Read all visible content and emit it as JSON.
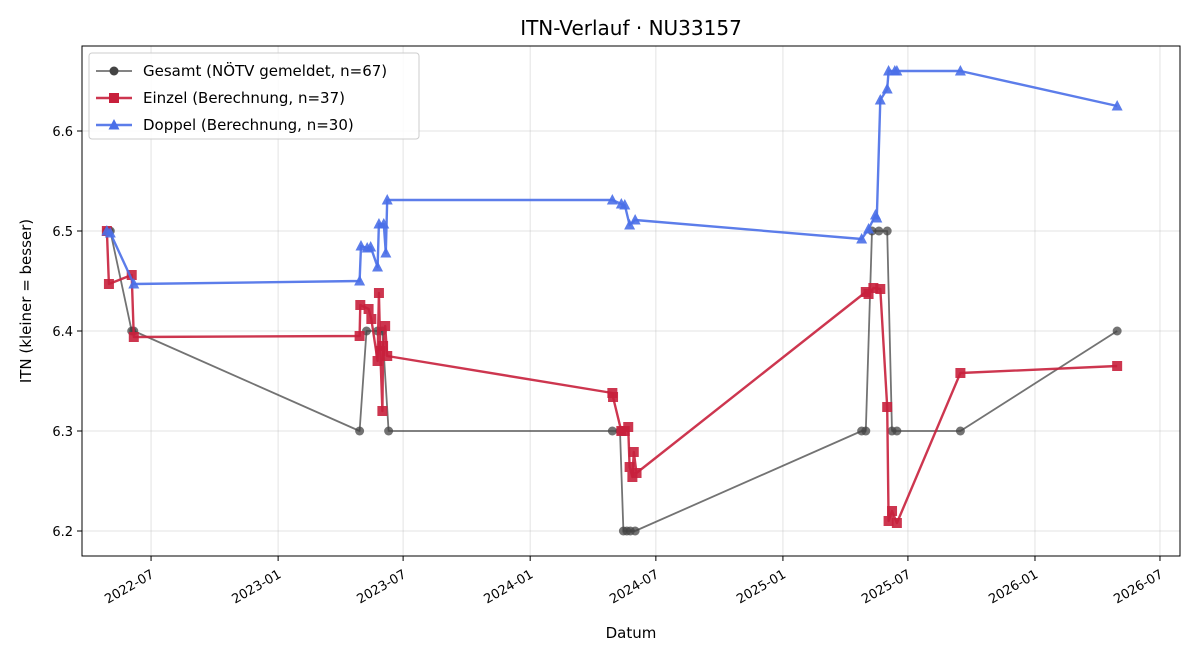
{
  "chart_data": {
    "type": "line",
    "title": "ITN-Verlauf · NU33157",
    "xlabel": "Datum",
    "ylabel": "ITN  (kleiner = besser)",
    "xlim": [
      "2022-03-23",
      "2026-07-30"
    ],
    "ylim": [
      6.175,
      6.685
    ],
    "x_ticks": [
      "2022-07",
      "2023-01",
      "2023-07",
      "2024-01",
      "2024-07",
      "2025-01",
      "2025-07",
      "2026-01",
      "2026-07"
    ],
    "y_ticks": [
      "6.2",
      "6.3",
      "6.4",
      "6.5",
      "6.6"
    ],
    "grid": true,
    "legend_position": "top-left",
    "series": [
      {
        "name": "Gesamt (NÖTV gemeldet, n=67)",
        "color": "#444444",
        "marker": "circle",
        "points": [
          [
            "2022-04-28",
            6.5
          ],
          [
            "2022-05-01",
            6.5
          ],
          [
            "2022-05-03",
            6.5
          ],
          [
            "2022-06-03",
            6.4
          ],
          [
            "2022-06-06",
            6.4
          ],
          [
            "2023-04-29",
            6.3
          ],
          [
            "2023-05-09",
            6.4
          ],
          [
            "2023-05-25",
            6.4
          ],
          [
            "2023-06-01",
            6.4
          ],
          [
            "2023-06-10",
            6.3
          ],
          [
            "2024-04-29",
            6.3
          ],
          [
            "2024-05-10",
            6.3
          ],
          [
            "2024-05-15",
            6.2
          ],
          [
            "2024-05-20",
            6.2
          ],
          [
            "2024-05-25",
            6.2
          ],
          [
            "2024-06-01",
            6.2
          ],
          [
            "2025-04-25",
            6.3
          ],
          [
            "2025-05-01",
            6.3
          ],
          [
            "2025-05-10",
            6.5
          ],
          [
            "2025-05-20",
            6.5
          ],
          [
            "2025-06-01",
            6.5
          ],
          [
            "2025-06-08",
            6.3
          ],
          [
            "2025-06-15",
            6.3
          ],
          [
            "2025-09-15",
            6.3
          ],
          [
            "2026-04-30",
            6.4
          ]
        ]
      },
      {
        "name": "Einzel (Berechnung, n=37)",
        "color": "#c8203c",
        "marker": "square",
        "points": [
          [
            "2022-04-28",
            6.5
          ],
          [
            "2022-05-01",
            6.447
          ],
          [
            "2022-06-03",
            6.456
          ],
          [
            "2022-06-06",
            6.394
          ],
          [
            "2023-04-29",
            6.395
          ],
          [
            "2023-04-30",
            6.426
          ],
          [
            "2023-05-12",
            6.422
          ],
          [
            "2023-05-16",
            6.412
          ],
          [
            "2023-05-25",
            6.37
          ],
          [
            "2023-05-27",
            6.438
          ],
          [
            "2023-05-29",
            6.38
          ],
          [
            "2023-06-01",
            6.32
          ],
          [
            "2023-06-02",
            6.385
          ],
          [
            "2023-06-05",
            6.405
          ],
          [
            "2023-06-08",
            6.375
          ],
          [
            "2024-04-29",
            6.338
          ],
          [
            "2024-04-30",
            6.334
          ],
          [
            "2024-05-12",
            6.3
          ],
          [
            "2024-05-17",
            6.3
          ],
          [
            "2024-05-22",
            6.304
          ],
          [
            "2024-05-24",
            6.264
          ],
          [
            "2024-05-28",
            6.254
          ],
          [
            "2024-05-30",
            6.279
          ],
          [
            "2024-06-03",
            6.258
          ],
          [
            "2025-05-01",
            6.439
          ],
          [
            "2025-05-05",
            6.437
          ],
          [
            "2025-05-12",
            6.443
          ],
          [
            "2025-05-22",
            6.442
          ],
          [
            "2025-06-01",
            6.324
          ],
          [
            "2025-06-03",
            6.21
          ],
          [
            "2025-06-08",
            6.22
          ],
          [
            "2025-06-15",
            6.208
          ],
          [
            "2025-09-15",
            6.358
          ],
          [
            "2026-04-30",
            6.365
          ]
        ]
      },
      {
        "name": "Doppel (Berechnung, n=30)",
        "color": "#4a6fe8",
        "marker": "triangle",
        "points": [
          [
            "2022-04-28",
            6.5
          ],
          [
            "2022-05-03",
            6.498
          ],
          [
            "2022-06-06",
            6.447
          ],
          [
            "2023-04-29",
            6.45
          ],
          [
            "2023-05-01",
            6.485
          ],
          [
            "2023-05-10",
            6.483
          ],
          [
            "2023-05-15",
            6.484
          ],
          [
            "2023-05-25",
            6.464
          ],
          [
            "2023-05-27",
            6.507
          ],
          [
            "2023-06-03",
            6.507
          ],
          [
            "2023-06-06",
            6.478
          ],
          [
            "2023-06-08",
            6.531
          ],
          [
            "2024-04-29",
            6.531
          ],
          [
            "2024-05-12",
            6.527
          ],
          [
            "2024-05-17",
            6.526
          ],
          [
            "2024-05-24",
            6.506
          ],
          [
            "2024-06-01",
            6.511
          ],
          [
            "2025-04-25",
            6.492
          ],
          [
            "2025-05-05",
            6.502
          ],
          [
            "2025-05-15",
            6.516
          ],
          [
            "2025-05-17",
            6.513
          ],
          [
            "2025-05-22",
            6.631
          ],
          [
            "2025-06-01",
            6.642
          ],
          [
            "2025-06-03",
            6.66
          ],
          [
            "2025-06-12",
            6.66
          ],
          [
            "2025-06-15",
            6.66
          ],
          [
            "2025-09-15",
            6.66
          ],
          [
            "2026-04-30",
            6.625
          ]
        ]
      }
    ]
  }
}
